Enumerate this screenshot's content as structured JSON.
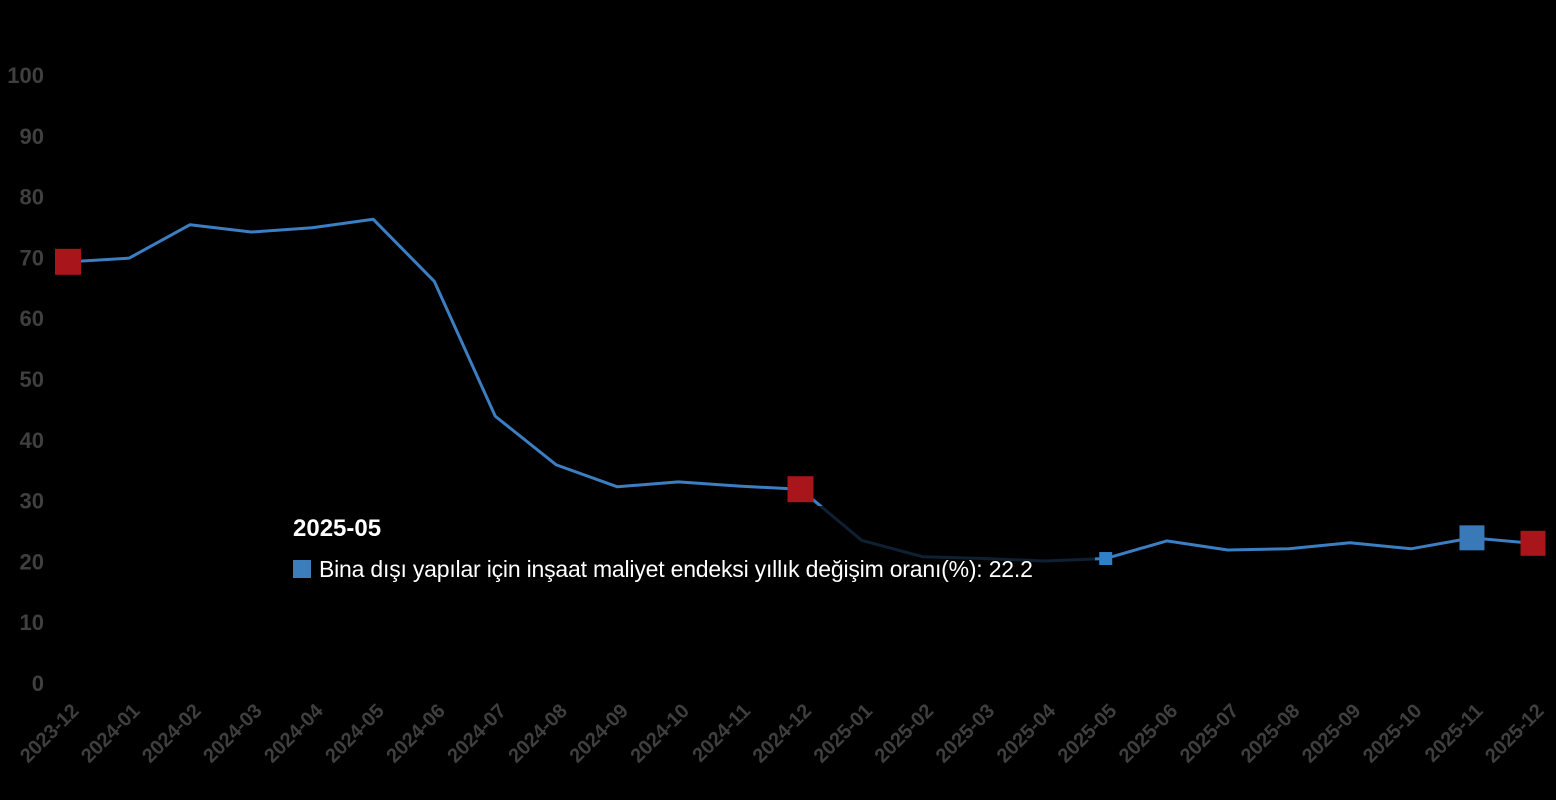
{
  "chart_data": {
    "type": "line",
    "title": "",
    "xlabel": "",
    "ylabel": "",
    "ylim": [
      0,
      100
    ],
    "yticks": [
      0,
      10,
      20,
      30,
      40,
      50,
      60,
      70,
      80,
      90,
      100
    ],
    "grid": false,
    "background": "#000000",
    "axis_label_color": "#3f3f3f",
    "line_color": "#3c7ec2",
    "categories": [
      "2023-12",
      "2024-01",
      "2024-02",
      "2024-03",
      "2024-04",
      "2024-05",
      "2024-06",
      "2024-07",
      "2024-08",
      "2024-09",
      "2024-10",
      "2024-11",
      "2024-12",
      "2025-01",
      "2025-02",
      "2025-03",
      "2025-04",
      "2025-05",
      "2025-06",
      "2025-07",
      "2025-08",
      "2025-09",
      "2025-10",
      "2025-11",
      "2025-12"
    ],
    "series": [
      {
        "name": "Bina dışı yapılar için inşaat maliyet endeksi yıllık değişim oranı(%)",
        "values": [
          71.0,
          71.6,
          77.1,
          75.9,
          76.6,
          78.0,
          67.8,
          45.6,
          37.6,
          34.0,
          34.8,
          34.1,
          33.6,
          25.2,
          22.5,
          22.2,
          21.8,
          22.2,
          25.1,
          23.6,
          23.8,
          24.8,
          23.8,
          25.6,
          24.7
        ]
      }
    ],
    "markers": [
      {
        "category": "2023-12",
        "index": 0,
        "shape": "square",
        "size": 26,
        "color": "#a8161b",
        "name": "marker-2023-12"
      },
      {
        "category": "2024-12",
        "index": 12,
        "shape": "square",
        "size": 26,
        "color": "#a8161b",
        "name": "marker-2024-12"
      },
      {
        "category": "2025-05",
        "index": 17,
        "shape": "square",
        "size": 13,
        "color": "#2e80c8",
        "name": "marker-hover-2025-05"
      },
      {
        "category": "2025-11",
        "index": 23,
        "shape": "square",
        "size": 25,
        "color": "#3a79b8",
        "name": "marker-2025-11"
      },
      {
        "category": "2025-12",
        "index": 24,
        "shape": "square",
        "size": 25,
        "color": "#a8161b",
        "name": "marker-2025-12"
      }
    ]
  },
  "tooltip": {
    "title": "2025-05",
    "series_label": "Bina dışı yapılar için inşaat maliyet endeksi yıllık değişim oranı(%)",
    "value": "22.2",
    "swatch_color": "#3a7ebd",
    "text_color": "#ffffff"
  }
}
